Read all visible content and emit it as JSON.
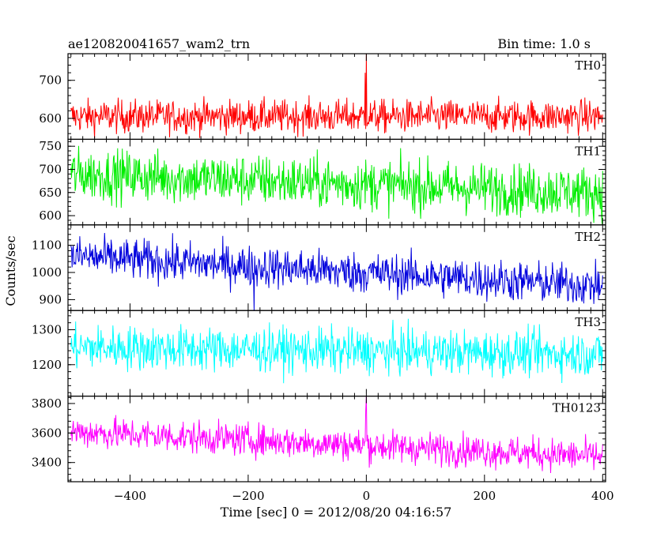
{
  "header": {
    "title": "ae120820041657_wam2_trn",
    "bin_time": "Bin time: 1.0 s"
  },
  "chart_data": {
    "type": "line",
    "xlabel": "Time [sec] 0 = 2012/08/20 04:16:57",
    "ylabel": "Counts/sec",
    "xlim": [
      -505,
      405
    ],
    "x_ticks": [
      -400,
      -200,
      0,
      200,
      400
    ],
    "x_tick_labels": [
      "−400",
      "−200",
      "0",
      "200",
      "400"
    ],
    "grid": false,
    "x_start": -500,
    "x_end": 400,
    "bin": 1.0,
    "panels": [
      {
        "name": "TH0",
        "color": "#ff0000",
        "ylim": [
          545,
          770
        ],
        "y_ticks": [
          600,
          700
        ],
        "start_mean": 605,
        "end_mean": 605,
        "noise": 22,
        "spikes": [
          {
            "x": 0,
            "value": 770
          },
          {
            "x": -2,
            "value": 720
          }
        ]
      },
      {
        "name": "TH1",
        "color": "#00ee00",
        "ylim": [
          580,
          765
        ],
        "y_ticks": [
          600,
          650,
          700,
          750
        ],
        "start_mean": 690,
        "end_mean": 650,
        "noise": 28,
        "spikes": []
      },
      {
        "name": "TH2",
        "color": "#0000dd",
        "ylim": [
          860,
          1175
        ],
        "y_ticks": [
          900,
          1000,
          1100
        ],
        "start_mean": 1060,
        "end_mean": 950,
        "noise": 38,
        "spikes": [
          {
            "x": -190,
            "value": 860
          }
        ]
      },
      {
        "name": "TH3",
        "color": "#00ffff",
        "ylim": [
          1110,
          1355
        ],
        "y_ticks": [
          1200,
          1300
        ],
        "start_mean": 1250,
        "end_mean": 1230,
        "noise": 32,
        "spikes": []
      },
      {
        "name": "TH0123",
        "color": "#ff00ff",
        "ylim": [
          3270,
          3850
        ],
        "y_ticks": [
          3400,
          3600,
          3800
        ],
        "start_mean": 3610,
        "end_mean": 3440,
        "noise": 55,
        "spikes": [
          {
            "x": 0,
            "value": 3850
          },
          {
            "x": -1,
            "value": 3750
          }
        ]
      }
    ]
  }
}
